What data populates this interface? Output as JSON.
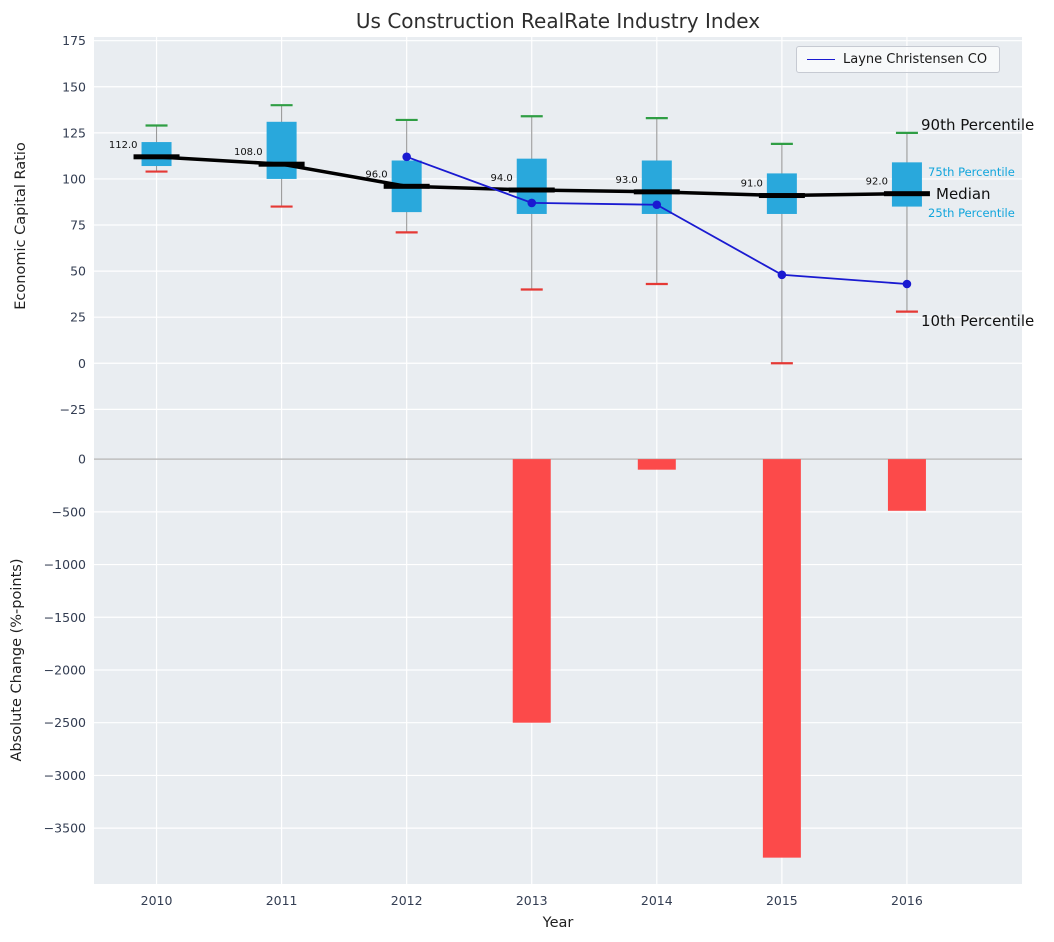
{
  "title": "Us Construction RealRate Industry Index",
  "legend": {
    "label": "Layne Christensen CO"
  },
  "axes": {
    "top_ylabel": "Economic Capital Ratio",
    "bottom_ylabel": "Absolute Change (%-points)",
    "xlabel": "Year"
  },
  "annotations": {
    "p90": "90th Percentile",
    "p75": "75th Percentile",
    "median": "Median",
    "p25": "25th Percentile",
    "p10": "10th Percentile"
  },
  "colors": {
    "axes_bg": "#e9edf1",
    "grid": "#ffffff",
    "box_fill": "#29a8dc",
    "median_line": "#000000",
    "company_line": "#1a1ad1",
    "whisker": "#999999",
    "cap_high": "#2f9e44",
    "cap_low": "#e53935",
    "bar": "#fc4a4a",
    "zero_line": "#b3b3b3",
    "tick_text": "#333d52",
    "percentile_text": "#11a5dc",
    "text": "#1f1f1f"
  },
  "chart_data": [
    {
      "type": "boxplot+line",
      "title": "Us Construction RealRate Industry Index",
      "ylabel": "Economic Capital Ratio",
      "x": [
        2010,
        2011,
        2012,
        2013,
        2014,
        2015,
        2016
      ],
      "p10": [
        104,
        85,
        71,
        40,
        43,
        0,
        28
      ],
      "p25": [
        107,
        100,
        82,
        81,
        81,
        81,
        85
      ],
      "median": [
        112,
        108,
        96,
        94,
        93,
        91,
        92
      ],
      "p75": [
        120,
        131,
        110,
        111,
        110,
        103,
        109
      ],
      "p90": [
        129,
        140,
        132,
        134,
        133,
        119,
        125
      ],
      "median_labels": [
        "112.0",
        "108.0",
        "96.0",
        "94.0",
        "93.0",
        "91.0",
        "92.0"
      ],
      "series": [
        {
          "name": "Layne Christensen CO",
          "x": [
            2012,
            2013,
            2014,
            2015,
            2016
          ],
          "y": [
            112,
            87,
            86,
            48,
            43
          ]
        }
      ],
      "ylim": [
        -40,
        177
      ],
      "xlim": [
        2009.5,
        2016.92
      ],
      "ytick_values": [
        175,
        150,
        125,
        100,
        75,
        50,
        25,
        0,
        -25
      ],
      "ytick_labels": [
        "175",
        "150",
        "125",
        "100",
        "75",
        "50",
        "25",
        "0",
        "−25"
      ],
      "grid": true,
      "legend_position": "upper right"
    },
    {
      "type": "bar",
      "ylabel": "Absolute Change (%-points)",
      "xlabel": "Year",
      "categories": [
        "2010",
        "2011",
        "2012",
        "2013",
        "2014",
        "2015",
        "2016"
      ],
      "x": [
        2010,
        2011,
        2012,
        2013,
        2014,
        2015,
        2016
      ],
      "values": [
        0,
        0,
        0,
        -2500,
        -100,
        -3780,
        -490
      ],
      "ylim": [
        -4030,
        210
      ],
      "ytick_values": [
        0,
        -500,
        -1000,
        -1500,
        -2000,
        -2500,
        -3000,
        -3500
      ],
      "ytick_labels": [
        "0",
        "−500",
        "−1000",
        "−1500",
        "−2000",
        "−2500",
        "−3000",
        "−3500"
      ],
      "xtick_labels": [
        "2010",
        "2011",
        "2012",
        "2013",
        "2014",
        "2015",
        "2016"
      ],
      "grid": true
    }
  ]
}
